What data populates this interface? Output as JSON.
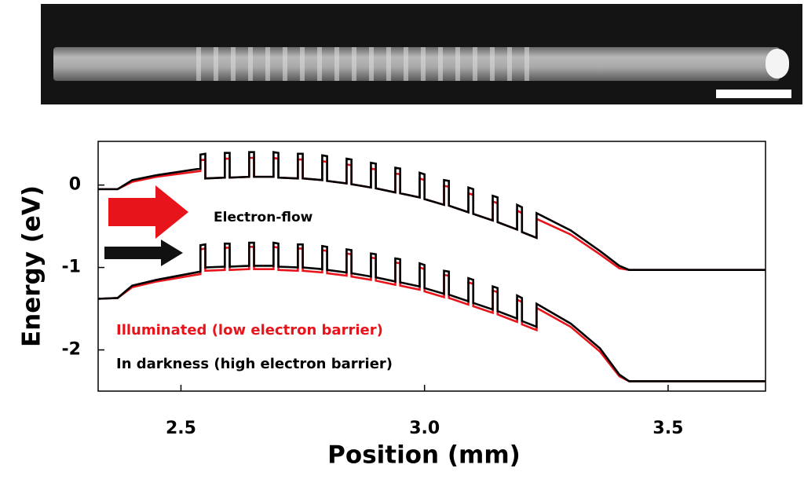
{
  "chart_data": {
    "type": "line",
    "x_label": "Position (mm)",
    "y_label": "Energy (eV)",
    "annotation": "Electron-flow",
    "xlim": [
      2.33,
      3.7
    ],
    "ylim": [
      -2.5,
      0.53
    ],
    "xticks": [
      2.5,
      {
        "value": 3,
        "label": "3.0"
      },
      3.5
    ],
    "yticks": [
      0,
      -1,
      -2
    ],
    "x": [
      2.33,
      2.37,
      2.4,
      2.45,
      2.54,
      2.54,
      2.55,
      2.55,
      2.59,
      2.59,
      2.6,
      2.6,
      2.64,
      2.64,
      2.65,
      2.65,
      2.69,
      2.69,
      2.7,
      2.7,
      2.74,
      2.74,
      2.75,
      2.75,
      2.79,
      2.79,
      2.8,
      2.8,
      2.84,
      2.84,
      2.85,
      2.85,
      2.89,
      2.89,
      2.9,
      2.9,
      2.94,
      2.94,
      2.95,
      2.95,
      2.99,
      2.99,
      3.0,
      3.0,
      3.04,
      3.04,
      3.05,
      3.05,
      3.09,
      3.09,
      3.1,
      3.1,
      3.14,
      3.14,
      3.15,
      3.15,
      3.19,
      3.19,
      3.2,
      3.2,
      3.23,
      3.23,
      3.3,
      3.36,
      3.4,
      3.42,
      3.7
    ],
    "series": [
      {
        "name": "Illuminated (low electron barrier)",
        "color": "#e8141b",
        "values": [
          -0.05,
          -0.05,
          0.04,
          0.1,
          0.17,
          0.3,
          0.31,
          0.08,
          0.09,
          0.32,
          0.32,
          0.09,
          0.1,
          0.33,
          0.33,
          0.1,
          0.1,
          0.33,
          0.32,
          0.09,
          0.08,
          0.31,
          0.31,
          0.08,
          0.06,
          0.29,
          0.28,
          0.05,
          0.02,
          0.25,
          0.24,
          0.01,
          -0.03,
          0.2,
          0.19,
          -0.04,
          -0.09,
          0.14,
          0.13,
          -0.1,
          -0.15,
          0.08,
          0.06,
          -0.17,
          -0.24,
          -0.01,
          -0.02,
          -0.25,
          -0.33,
          -0.1,
          -0.12,
          -0.35,
          -0.43,
          -0.2,
          -0.22,
          -0.45,
          -0.54,
          -0.31,
          -0.34,
          -0.57,
          -0.64,
          -0.41,
          -0.6,
          -0.84,
          -1.01,
          -1.03,
          -1.03
        ]
      },
      {
        "color": "#e8141b",
        "values": [
          -1.38,
          -1.37,
          -1.24,
          -1.17,
          -1.08,
          -0.78,
          -0.77,
          -1.04,
          -1.03,
          -0.76,
          -0.76,
          -1.03,
          -1.02,
          -0.75,
          -0.75,
          -1.02,
          -1.02,
          -0.75,
          -0.76,
          -1.03,
          -1.04,
          -0.77,
          -0.77,
          -1.04,
          -1.06,
          -0.79,
          -0.8,
          -1.07,
          -1.1,
          -0.83,
          -0.84,
          -1.11,
          -1.15,
          -0.88,
          -0.89,
          -1.16,
          -1.21,
          -0.94,
          -0.95,
          -1.22,
          -1.27,
          -1.0,
          -1.02,
          -1.29,
          -1.36,
          -1.09,
          -1.1,
          -1.37,
          -1.45,
          -1.18,
          -1.2,
          -1.47,
          -1.55,
          -1.28,
          -1.3,
          -1.57,
          -1.66,
          -1.39,
          -1.42,
          -1.69,
          -1.76,
          -1.49,
          -1.72,
          -2.02,
          -2.32,
          -2.38,
          -2.38
        ]
      },
      {
        "name": "In darkness (high electron barrier)",
        "color": "#000000",
        "values": [
          -0.05,
          -0.05,
          0.06,
          0.12,
          0.2,
          0.37,
          0.38,
          0.08,
          0.09,
          0.39,
          0.39,
          0.09,
          0.1,
          0.4,
          0.4,
          0.1,
          0.1,
          0.4,
          0.39,
          0.09,
          0.08,
          0.38,
          0.38,
          0.08,
          0.06,
          0.36,
          0.35,
          0.05,
          0.02,
          0.32,
          0.31,
          0.01,
          -0.03,
          0.27,
          0.26,
          -0.04,
          -0.09,
          0.21,
          0.2,
          -0.1,
          -0.15,
          0.15,
          0.13,
          -0.17,
          -0.24,
          0.06,
          0.05,
          -0.25,
          -0.33,
          -0.03,
          -0.05,
          -0.35,
          -0.43,
          -0.13,
          -0.15,
          -0.45,
          -0.54,
          -0.24,
          -0.27,
          -0.57,
          -0.64,
          -0.34,
          -0.55,
          -0.8,
          -0.98,
          -1.03,
          -1.03
        ]
      },
      {
        "color": "#000000",
        "values": [
          -1.38,
          -1.37,
          -1.22,
          -1.15,
          -1.05,
          -0.73,
          -0.72,
          -1.0,
          -0.99,
          -0.71,
          -0.71,
          -0.99,
          -0.98,
          -0.7,
          -0.7,
          -0.98,
          -0.98,
          -0.7,
          -0.71,
          -0.99,
          -1.0,
          -0.72,
          -0.72,
          -1.0,
          -1.02,
          -0.74,
          -0.75,
          -1.03,
          -1.06,
          -0.78,
          -0.79,
          -1.07,
          -1.11,
          -0.83,
          -0.84,
          -1.12,
          -1.17,
          -0.89,
          -0.9,
          -1.18,
          -1.23,
          -0.95,
          -0.97,
          -1.25,
          -1.32,
          -1.04,
          -1.05,
          -1.33,
          -1.41,
          -1.13,
          -1.15,
          -1.43,
          -1.51,
          -1.23,
          -1.25,
          -1.53,
          -1.62,
          -1.34,
          -1.37,
          -1.65,
          -1.72,
          -1.44,
          -1.68,
          -1.98,
          -2.3,
          -2.38,
          -2.38
        ]
      }
    ]
  }
}
